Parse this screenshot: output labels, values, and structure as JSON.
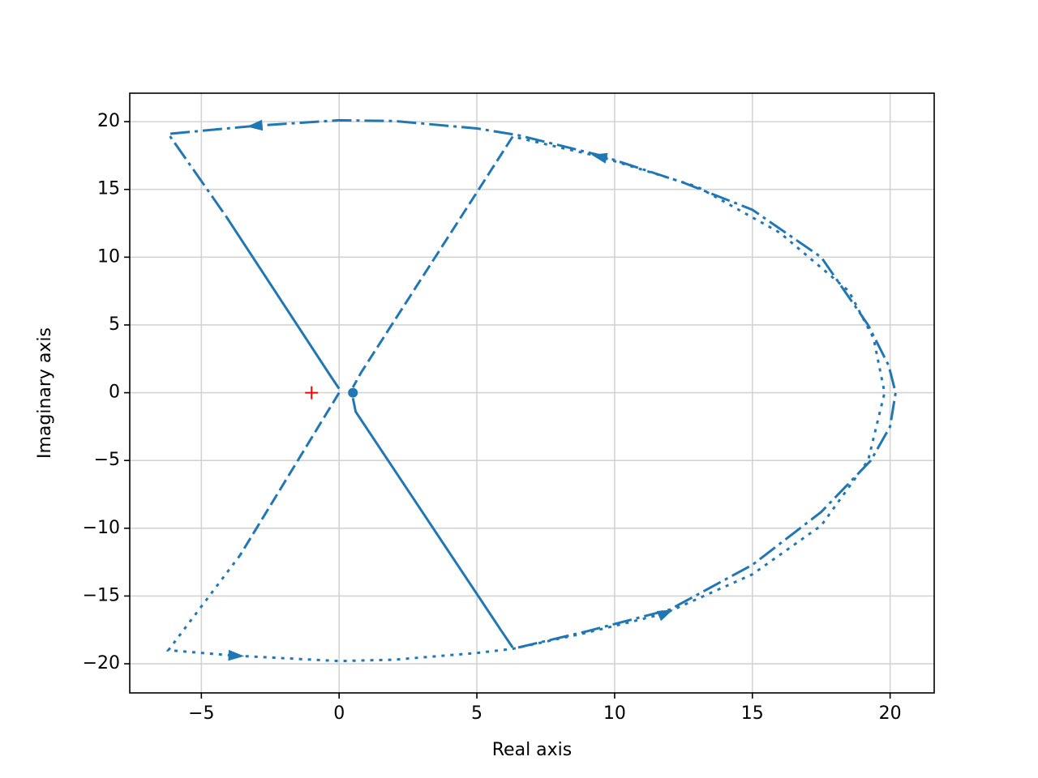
{
  "chart_data": {
    "type": "line",
    "x_label": "Real axis",
    "y_label": "Imaginary axis",
    "xlim": [
      -7.6,
      21.6
    ],
    "ylim": [
      -22.15,
      22.1
    ],
    "grid": true,
    "xticks": [
      {
        "value": -5,
        "label": "−5"
      },
      0,
      5,
      10,
      15,
      20
    ],
    "yticks": [
      {
        "value": -20,
        "label": "−20"
      },
      {
        "value": -15,
        "label": "−15"
      },
      {
        "value": -10,
        "label": "−10"
      },
      {
        "value": -5,
        "label": "−5"
      },
      0,
      5,
      10,
      15,
      20
    ],
    "series": [
      {
        "color": "#1f77b4",
        "style": "solid",
        "x": [
          0,
          -0.3,
          -4.1
        ],
        "values": [
          0.3,
          1.2,
          13
        ]
      },
      {
        "color": "#1f77b4",
        "style": "solid",
        "x": [
          0.5,
          0.6,
          5.9,
          6.3
        ],
        "values": [
          -0.4,
          -1.4,
          -17.6,
          -18.8
        ]
      },
      {
        "color": "#1f77b4",
        "style": "dashdot",
        "x": [
          6.5,
          9,
          12,
          15,
          17.5,
          19.3,
          20,
          20.2,
          19.95,
          19.2,
          17.5,
          15,
          12.5,
          9.5,
          6.5,
          5,
          2,
          0,
          -3,
          -6.2,
          -4.1
        ],
        "values": [
          -18.8,
          -17.6,
          -16,
          -12.7,
          -8.8,
          -5,
          -2.5,
          0,
          2,
          5,
          10,
          13.5,
          15.5,
          17.5,
          19,
          19.5,
          20.05,
          20.1,
          19.7,
          19.1,
          13
        ],
        "arrows": [
          18
        ]
      },
      {
        "color": "#1f77b4",
        "style": "dotted",
        "x": [
          -3.6,
          -6.2,
          -3.8,
          0,
          2,
          5,
          6.3,
          9,
          11.8,
          15,
          17.5,
          19.2,
          19.8,
          19.4,
          18.5,
          16,
          13,
          9.5,
          6.3
        ],
        "values": [
          -12,
          -19,
          -19.4,
          -19.8,
          -19.7,
          -19.2,
          -18.9,
          -17.7,
          -16.3,
          -13.4,
          -9.8,
          -5,
          0,
          4,
          7.5,
          11.8,
          15.2,
          17.4,
          18.9
        ],
        "arrows": [
          2,
          8,
          17
        ]
      },
      {
        "color": "#1f77b4",
        "style": "dashed",
        "x": [
          6.3,
          0.8,
          0.5,
          null,
          0,
          -3.6
        ],
        "values": [
          18.9,
          1.5,
          0.4,
          null,
          0,
          -12
        ]
      },
      {
        "color": "red",
        "marker": "+",
        "x": [
          -1
        ],
        "values": [
          0
        ]
      },
      {
        "color": "#1f77b4",
        "marker": "o",
        "x": [
          0.5
        ],
        "values": [
          0
        ]
      }
    ]
  }
}
